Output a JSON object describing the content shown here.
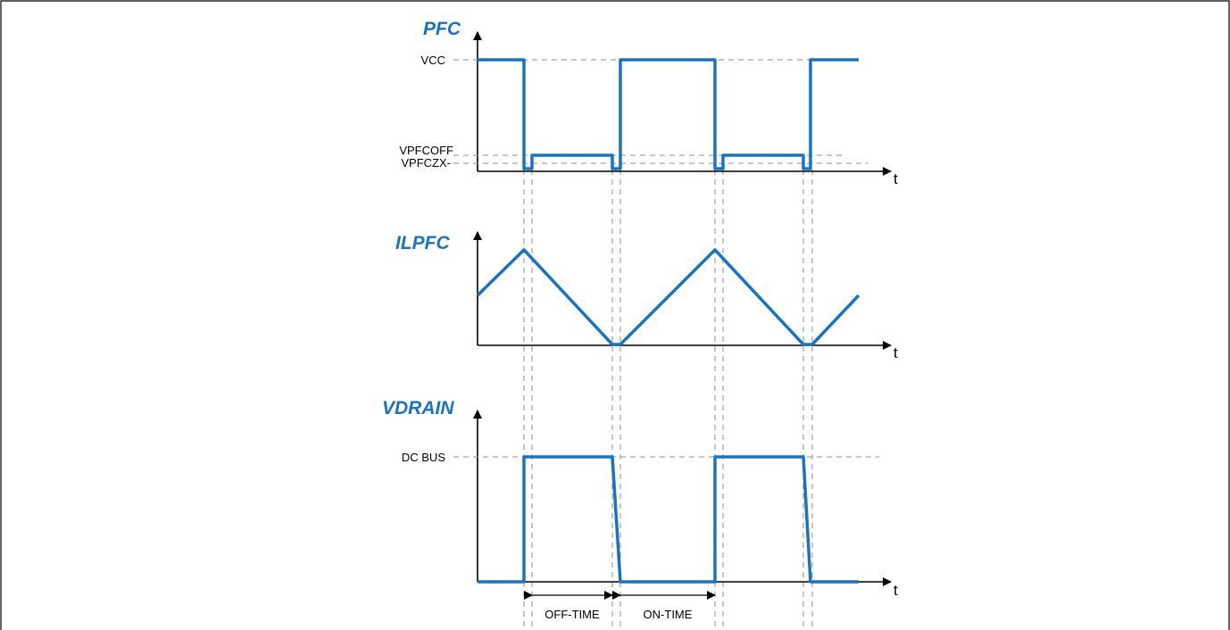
{
  "diagram": {
    "signals": {
      "pfc": {
        "title": "PFC",
        "axis_label": "t",
        "levels": {
          "vcc": "VCC",
          "vpfcoff": "VPFCOFF",
          "vpfczx": "VPFCZX-"
        }
      },
      "ilpfc": {
        "title": "ILPFC",
        "axis_label": "t"
      },
      "vdrain": {
        "title": "VDRAIN",
        "axis_label": "t",
        "levels": {
          "dcbus": "DC BUS"
        }
      }
    },
    "intervals": {
      "off_time": "OFF-TIME",
      "on_time": "ON-TIME"
    },
    "colors": {
      "waveform": "#1a73c0",
      "axis": "#000000",
      "guide": "#8c8c8c"
    }
  }
}
